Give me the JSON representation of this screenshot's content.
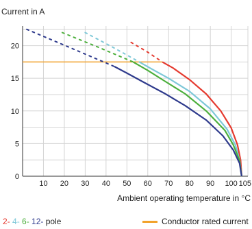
{
  "chart_data": {
    "type": "line",
    "title": "",
    "ylabel": "Current in A",
    "xlabel": "Ambient operating temperature in °C",
    "xlim": [
      0,
      108
    ],
    "ylim": [
      0,
      23
    ],
    "x_ticks": [
      "10",
      "20",
      "30",
      "40",
      "50",
      "60",
      "70",
      "80",
      "90",
      "100",
      "105"
    ],
    "y_ticks": [
      "0",
      "5",
      "10",
      "15",
      "20"
    ],
    "grid": true,
    "series": [
      {
        "name": "2-",
        "color": "#e53a2f",
        "x": [
          67,
          72,
          80,
          88,
          95,
          100,
          103,
          104.5,
          105
        ],
        "y": [
          17.5,
          16.6,
          14.8,
          12.6,
          10.0,
          7.4,
          4.8,
          2.5,
          0
        ],
        "dotted": {
          "x": [
            52,
            60,
            67
          ],
          "y": [
            20.5,
            19.0,
            17.5
          ]
        }
      },
      {
        "name": "4-",
        "color": "#7ec8d8",
        "x": [
          56,
          62,
          70,
          80,
          90,
          98,
          102,
          104,
          105
        ],
        "y": [
          17.5,
          16.4,
          15.0,
          13.0,
          10.3,
          7.2,
          4.8,
          2.5,
          0
        ],
        "dotted": {
          "x": [
            30,
            43,
            56
          ],
          "y": [
            22.0,
            19.8,
            17.5
          ]
        }
      },
      {
        "name": "6-",
        "color": "#4caf3c",
        "x": [
          53,
          60,
          68,
          78,
          88,
          97,
          101,
          104,
          105
        ],
        "y": [
          17.5,
          16.2,
          14.6,
          12.6,
          10.0,
          7.0,
          4.8,
          2.4,
          0
        ],
        "dotted": {
          "x": [
            19,
            36,
            53
          ],
          "y": [
            22.0,
            19.8,
            17.5
          ]
        }
      },
      {
        "name": "12-",
        "color": "#2e3a8c",
        "x": [
          44,
          50,
          58,
          68,
          78,
          88,
          96,
          101,
          104,
          105
        ],
        "y": [
          16.8,
          15.8,
          14.4,
          12.7,
          10.8,
          8.6,
          6.2,
          4.0,
          2.0,
          0
        ],
        "dotted": {
          "x": [
            2,
            22,
            44
          ],
          "y": [
            22.5,
            19.8,
            16.8
          ]
        }
      }
    ],
    "rated_current": {
      "name": "Conductor rated current",
      "value": 17.5,
      "x_end": 67,
      "color": "#f2a22b"
    }
  },
  "legend": {
    "poles": [
      {
        "label": "2-",
        "color": "#e53a2f"
      },
      {
        "label": "4-",
        "color": "#7ec8d8"
      },
      {
        "label": "6-",
        "color": "#4caf3c"
      },
      {
        "label": "12-",
        "color": "#2e3a8c"
      }
    ],
    "pole_suffix": "pole",
    "rated_label": "Conductor rated current"
  }
}
